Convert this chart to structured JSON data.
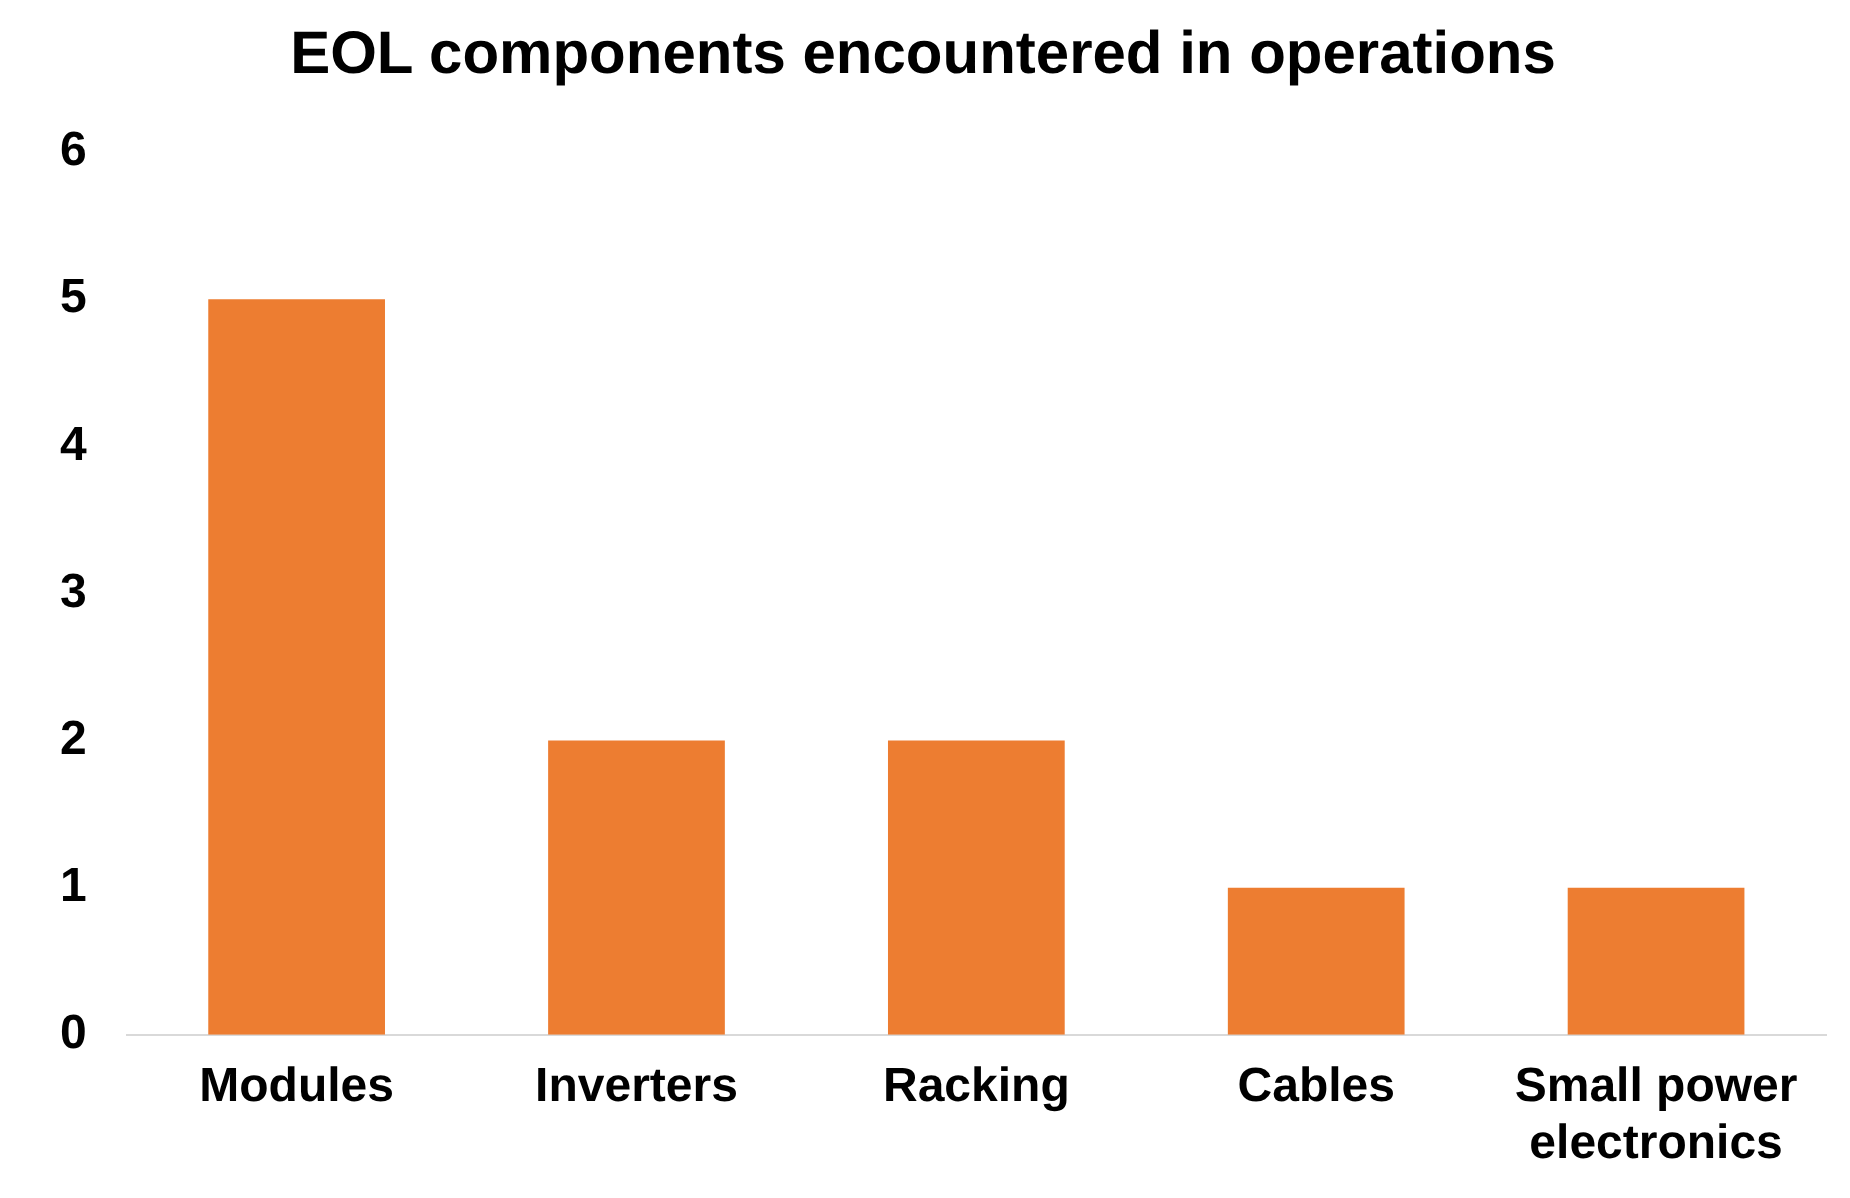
{
  "chart_data": {
    "type": "bar",
    "title": "EOL components encountered in operations",
    "categories": [
      "Modules",
      "Inverters",
      "Racking",
      "Cables",
      "Small power electronics"
    ],
    "values": [
      5,
      2,
      2,
      1,
      1
    ],
    "color": "#ed7d31",
    "ylim": [
      0,
      6
    ],
    "yticks": [
      0,
      1,
      2,
      3,
      4,
      5,
      6
    ],
    "grid": false,
    "legend": false
  }
}
